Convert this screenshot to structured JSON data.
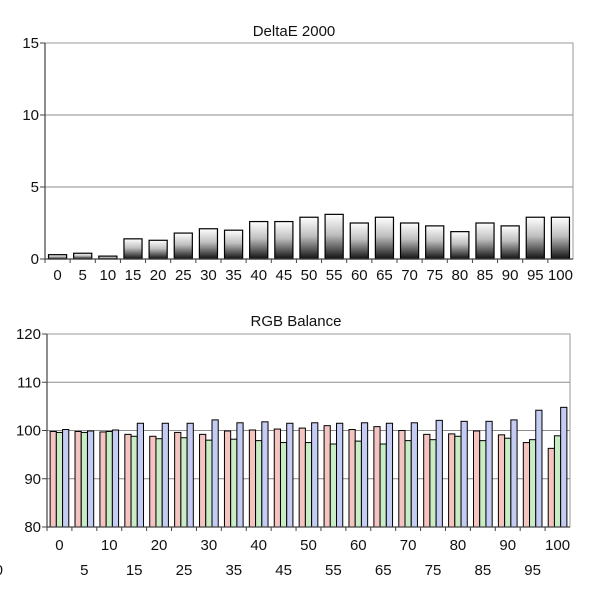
{
  "chart_data": [
    {
      "type": "bar",
      "title": "DeltaE 2000",
      "xlabel": "",
      "ylabel": "",
      "ylim": [
        0,
        15
      ],
      "yticks": [
        0,
        5,
        10,
        15
      ],
      "grid": true,
      "legend": "none",
      "categories": [
        "0",
        "5",
        "10",
        "15",
        "20",
        "25",
        "30",
        "35",
        "40",
        "45",
        "50",
        "55",
        "60",
        "65",
        "70",
        "75",
        "80",
        "85",
        "90",
        "95",
        "100"
      ],
      "values": [
        0.3,
        0.4,
        0.2,
        1.4,
        1.3,
        1.8,
        2.1,
        2.0,
        2.6,
        2.6,
        2.9,
        3.1,
        2.5,
        2.9,
        2.5,
        2.3,
        1.9,
        2.5,
        2.3,
        2.9,
        2.9
      ]
    },
    {
      "type": "bar",
      "title": "RGB Balance",
      "xlabel": "",
      "ylabel": "",
      "ylim": [
        80,
        120
      ],
      "yticks": [
        80,
        90,
        100,
        110,
        120
      ],
      "grid": true,
      "legend": "none",
      "categories": [
        "0",
        "5",
        "10",
        "15",
        "20",
        "25",
        "30",
        "35",
        "40",
        "45",
        "50",
        "55",
        "60",
        "65",
        "70",
        "75",
        "80",
        "85",
        "90",
        "95",
        "100"
      ],
      "x_tick_row1": [
        "0",
        "10",
        "20",
        "30",
        "40",
        "50",
        "60",
        "70",
        "80",
        "90",
        "100"
      ],
      "x_tick_row2": [
        "5",
        "15",
        "25",
        "35",
        "45",
        "55",
        "65",
        "75",
        "85",
        "95"
      ],
      "x_tick_clipped": "0",
      "series": [
        {
          "color": "#f4c4c0",
          "values": [
            99.8,
            99.8,
            99.7,
            99.2,
            98.8,
            99.6,
            99.2,
            99.9,
            100.1,
            100.3,
            100.5,
            101.0,
            100.2,
            100.8,
            100.0,
            99.2,
            99.3,
            99.9,
            99.1,
            97.5,
            96.3
          ]
        },
        {
          "color": "#c8ecc4",
          "values": [
            99.6,
            99.6,
            99.8,
            98.8,
            98.3,
            98.5,
            98.0,
            98.2,
            97.9,
            97.5,
            97.5,
            97.2,
            97.8,
            97.2,
            97.9,
            98.1,
            98.8,
            97.9,
            98.4,
            98.1,
            98.9
          ]
        },
        {
          "color": "#c4ccf4",
          "values": [
            100.2,
            99.9,
            100.1,
            101.5,
            101.5,
            101.5,
            102.2,
            101.6,
            101.8,
            101.5,
            101.6,
            101.5,
            101.6,
            101.5,
            101.6,
            102.1,
            101.9,
            101.9,
            102.2,
            104.2,
            104.8
          ]
        }
      ]
    }
  ]
}
